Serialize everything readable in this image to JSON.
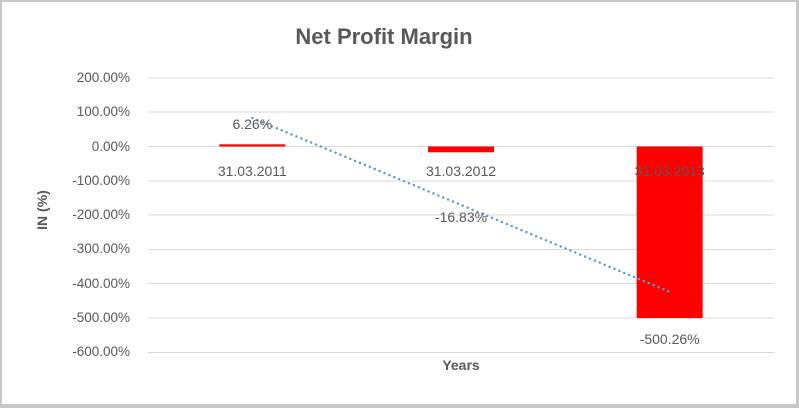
{
  "chart": {
    "title": "Net Profit Margin",
    "y_axis_title": "IN (%)",
    "x_axis_title": "Years"
  },
  "chart_data": {
    "type": "bar",
    "title": "Net Profit Margin",
    "xlabel": "Years",
    "ylabel": "IN (%)",
    "categories": [
      "31.03.2011",
      "31.03.2012",
      "31.03.2013"
    ],
    "series": [
      {
        "name": "Net Profit Margin",
        "values": [
          6.26,
          -16.83,
          -500.26
        ]
      }
    ],
    "data_labels": [
      "6.26%",
      "-16.83%",
      "-500.26%"
    ],
    "y_ticks": [
      200,
      100,
      0,
      -100,
      -200,
      -300,
      -400,
      -500,
      -600
    ],
    "y_tick_labels": [
      "200.00%",
      "100.00%",
      "0.00%",
      "-100.00%",
      "-200.00%",
      "-300.00%",
      "-400.00%",
      "-500.00%",
      "-600.00%"
    ],
    "ylim": [
      -600,
      200
    ],
    "grid": true,
    "legend": false,
    "trendline": {
      "type": "linear",
      "style": "dotted",
      "endpoints": [
        82.98,
        -423.54
      ]
    },
    "colors": {
      "bar": "#ff0000",
      "trendline": "#5b9bd5",
      "gridline": "#d9d9d9",
      "text": "#595959",
      "frame_border": "#c7c7c7"
    }
  }
}
